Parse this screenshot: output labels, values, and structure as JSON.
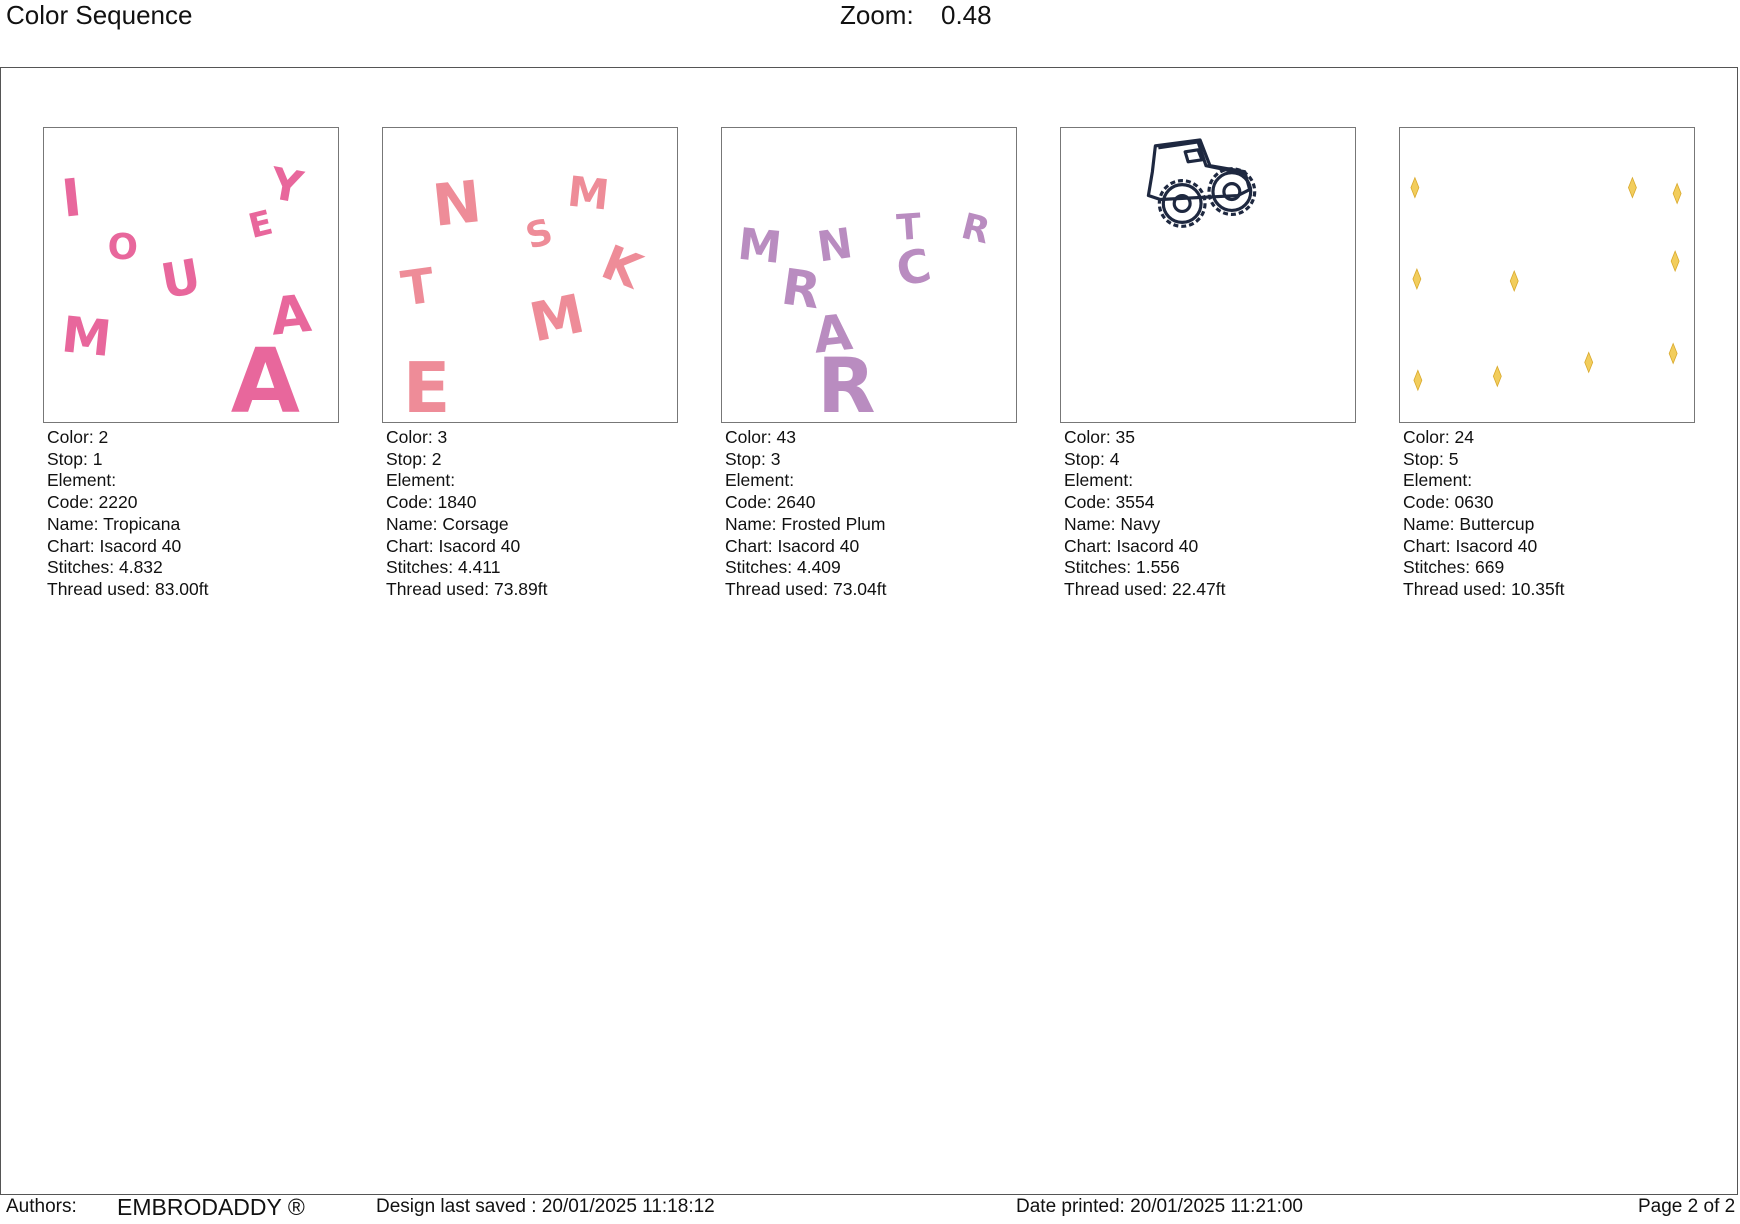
{
  "header": {
    "title": "Color Sequence",
    "zoom_label": "Zoom:",
    "zoom_value": "0.48"
  },
  "colors": [
    {
      "color": "Color: 2",
      "stop": "Stop: 1",
      "element": "Element:",
      "code": "Code: 2220",
      "name": "Name: Tropicana",
      "chart": "Chart: Isacord 40",
      "stitches": "Stitches: 4.832",
      "thread": "Thread used: 83.00ft",
      "fill": "#e8679c",
      "glyphs": [
        "I",
        "O",
        "U",
        "M",
        "E",
        "Y",
        "A",
        "A"
      ]
    },
    {
      "color": "Color: 3",
      "stop": "Stop: 2",
      "element": "Element:",
      "code": "Code: 1840",
      "name": "Name: Corsage",
      "chart": "Chart: Isacord 40",
      "stitches": "Stitches: 4.411",
      "thread": "Thread used: 73.89ft",
      "fill": "#ee8c98",
      "glyphs": [
        "N",
        "M",
        "S",
        "K",
        "T",
        "M",
        "E"
      ]
    },
    {
      "color": "Color: 43",
      "stop": "Stop: 3",
      "element": "Element:",
      "code": "Code: 2640",
      "name": "Name: Frosted Plum",
      "chart": "Chart: Isacord 40",
      "stitches": "Stitches: 4.409",
      "thread": "Thread used: 73.04ft",
      "fill": "#b98cc0",
      "glyphs": [
        "M",
        "N",
        "T",
        "R",
        "C",
        "R",
        "A",
        "R"
      ]
    },
    {
      "color": "Color: 35",
      "stop": "Stop: 4",
      "element": "Element:",
      "code": "Code: 3554",
      "name": "Name: Navy",
      "chart": "Chart: Isacord 40",
      "stitches": "Stitches: 1.556",
      "thread": "Thread used: 22.47ft",
      "fill": "#1e2840",
      "glyphs": []
    },
    {
      "color": "Color: 24",
      "stop": "Stop: 5",
      "element": "Element:",
      "code": "Code: 0630",
      "name": "Name: Buttercup",
      "chart": "Chart: Isacord 40",
      "stitches": "Stitches: 669",
      "thread": "Thread used: 10.35ft",
      "fill": "#f2cd5c",
      "glyphs": []
    }
  ],
  "footer": {
    "authors_label": "Authors:",
    "brand": "EMBRODADDY ®",
    "saved": "Design last saved : 20/01/2025 11:18:12",
    "printed": "Date printed: 20/01/2025 11:21:00",
    "page": "Page 2 of 2"
  }
}
